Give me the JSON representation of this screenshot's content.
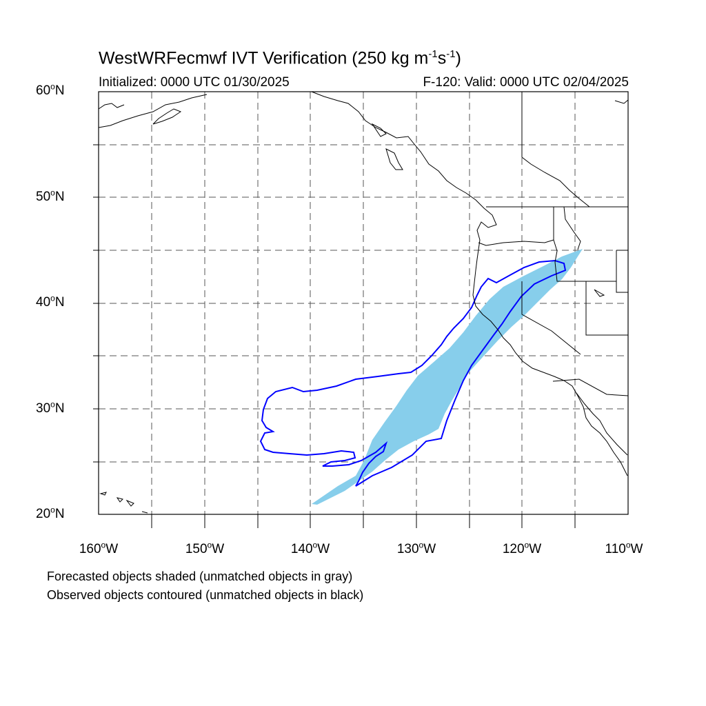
{
  "title": {
    "main": "WestWRFecmwf IVT Verification (250 kg m",
    "exp1": "-1",
    "mid": "s",
    "exp2": "-1",
    "end": ")"
  },
  "initialized": "Initialized: 0000 UTC 01/30/2025",
  "valid": "F-120: Valid: 0000 UTC 02/04/2025",
  "axes": {
    "lat_labels": [
      {
        "num": "60",
        "hemi": "N"
      },
      {
        "num": "50",
        "hemi": "N"
      },
      {
        "num": "40",
        "hemi": "N"
      },
      {
        "num": "30",
        "hemi": "N"
      },
      {
        "num": "20",
        "hemi": "N"
      }
    ],
    "lon_labels": [
      {
        "num": "160",
        "hemi": "W"
      },
      {
        "num": "150",
        "hemi": "W"
      },
      {
        "num": "140",
        "hemi": "W"
      },
      {
        "num": "130",
        "hemi": "W"
      },
      {
        "num": "120",
        "hemi": "W"
      },
      {
        "num": "110",
        "hemi": "W"
      }
    ],
    "lon_range": [
      -160,
      -110
    ],
    "lat_range": [
      20,
      60
    ],
    "gridlines": "dashed every 5 degrees"
  },
  "legend": {
    "line1": "Forecasted objects shaded (unmatched objects in gray)",
    "line2": "Observed objects contoured (unmatched objects in black)"
  },
  "colors": {
    "forecast_fill": "#87ceeb",
    "observed_contour": "#0000ff",
    "coastline": "#000000"
  }
}
